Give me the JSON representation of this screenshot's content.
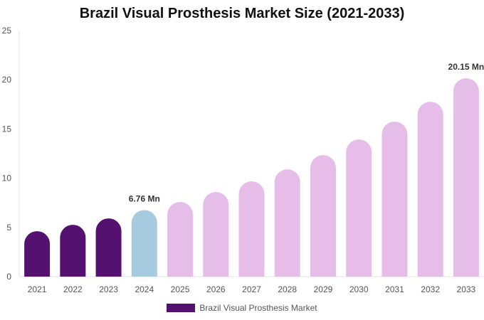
{
  "chart_data": {
    "type": "bar",
    "title": "Brazil Visual Prosthesis Market Size (2021-2033)",
    "xlabel": "",
    "ylabel": "",
    "ylim": [
      0,
      25
    ],
    "yticks": [
      0,
      5,
      10,
      15,
      20,
      25
    ],
    "grid": false,
    "legend_position": "bottom",
    "categories": [
      "2021",
      "2022",
      "2023",
      "2024",
      "2025",
      "2026",
      "2027",
      "2028",
      "2029",
      "2030",
      "2031",
      "2032",
      "2033"
    ],
    "series": [
      {
        "name": "Brazil Visual Prosthesis Market",
        "values": [
          4.62,
          5.27,
          5.92,
          6.76,
          7.59,
          8.6,
          9.68,
          10.9,
          12.35,
          13.94,
          15.75,
          17.77,
          20.15
        ]
      }
    ],
    "data_labels": [
      {
        "category": "2024",
        "text": "6.76 Mn"
      },
      {
        "category": "2033",
        "text": "20.15 Mn"
      }
    ],
    "colors": {
      "historical": "#541170",
      "base_year": "#a6cbdf",
      "forecast": "#e6bde9"
    }
  }
}
